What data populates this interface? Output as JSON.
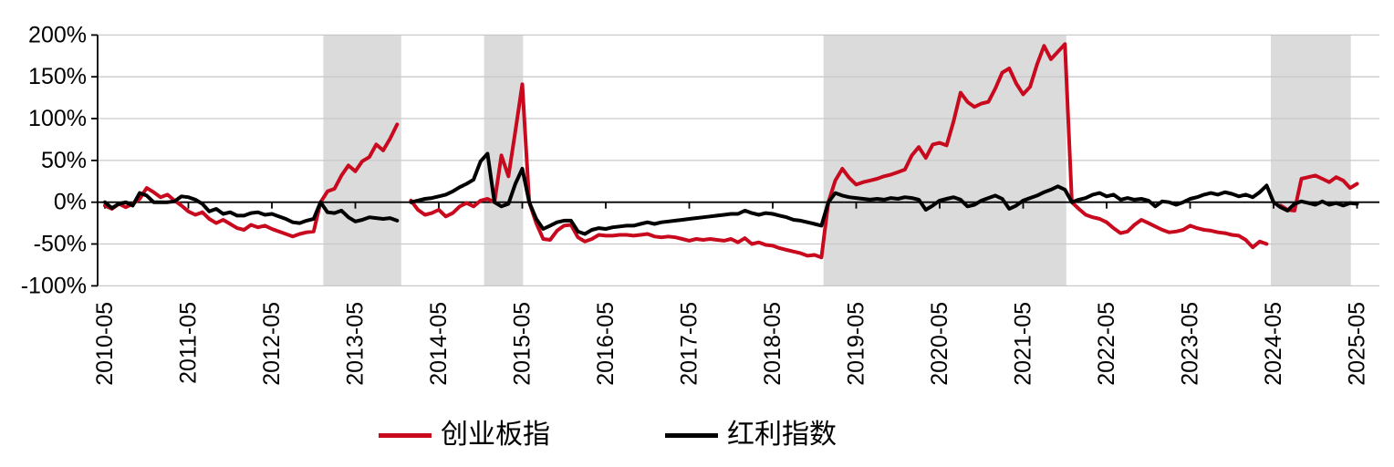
{
  "chart_data": {
    "type": "line",
    "title": "",
    "x_unit": "month",
    "x_start": "2010-05",
    "x_end": "2025-05",
    "n_points": 181,
    "x_tick_labels": [
      "2010-05",
      "2011-05",
      "2012-05",
      "2013-05",
      "2014-05",
      "2015-05",
      "2016-05",
      "2017-05",
      "2018-05",
      "2019-05",
      "2020-05",
      "2021-05",
      "2022-05",
      "2023-05",
      "2024-05",
      "2025-05"
    ],
    "x_tick_interval_months": 12,
    "y_ticks": [
      200,
      150,
      100,
      50,
      0,
      -50,
      -100
    ],
    "y_tick_labels": [
      "200%",
      "150%",
      "100%",
      "50%",
      "0%",
      "-50%",
      "-100%"
    ],
    "ylim": [
      -100,
      200
    ],
    "grid": "horizontal",
    "legend_position": "bottom",
    "axis_color": "#000000",
    "gridline_color": "#c9c9c9",
    "band_color": "#dbdbdb",
    "shaded_bands": [
      {
        "from": "2012-12",
        "to": "2013-11",
        "from_month_index": 31.4,
        "to_month_index": 42.6
      },
      {
        "from": "2014-12",
        "to": "2015-05",
        "from_month_index": 54.5,
        "to_month_index": 60.1
      },
      {
        "from": "2019-01",
        "to": "2021-11",
        "from_month_index": 103.3,
        "to_month_index": 138.2
      },
      {
        "from": "2024-05",
        "to": "2025-04",
        "from_month_index": 167.6,
        "to_month_index": 179.1
      }
    ],
    "series": [
      {
        "name": "创业板指",
        "color": "#c8091e",
        "values": [
          -4,
          -8,
          -2,
          -6,
          -2,
          4,
          17,
          12,
          6,
          9,
          2,
          -4,
          -11,
          -15,
          -12,
          -20,
          -25,
          -21,
          -26,
          -31,
          -33,
          -27,
          -30,
          -28,
          -32,
          -35,
          -38,
          -41,
          -38,
          -36,
          -35,
          0,
          13,
          16,
          32,
          44,
          37,
          49,
          54,
          69,
          62,
          76,
          93,
          null,
          2,
          -9,
          -15,
          -13,
          -9,
          -17,
          -13,
          -5,
          -1,
          -5,
          2,
          4,
          0,
          56,
          31,
          85,
          141,
          0,
          -25,
          -44,
          -45,
          -34,
          -28,
          -27,
          -42,
          -47,
          -44,
          -39,
          -40,
          -40,
          -39,
          -39,
          -40,
          -39,
          -38,
          -41,
          -42,
          -41,
          -42,
          -44,
          -46,
          -44,
          -45,
          -44,
          -45,
          -46,
          -44,
          -48,
          -43,
          -50,
          -48,
          -51,
          -52,
          -55,
          -57,
          -59,
          -61,
          -64,
          -63,
          -66,
          0,
          26,
          40,
          29,
          21,
          24,
          26,
          28,
          31,
          33,
          36,
          39,
          56,
          66,
          53,
          69,
          71,
          68,
          97,
          131,
          120,
          114,
          118,
          120,
          136,
          155,
          160,
          142,
          129,
          138,
          165,
          187,
          171,
          180,
          189,
          0,
          -8,
          -15,
          -18,
          -20,
          -24,
          -31,
          -37,
          -35,
          -27,
          -21,
          -25,
          -29,
          -33,
          -36,
          -35,
          -33,
          -28,
          -31,
          -33,
          -34,
          -36,
          -37,
          -39,
          -40,
          -45,
          -54,
          -47,
          -50,
          null,
          -4,
          -9,
          -10,
          28,
          30,
          32,
          28,
          24,
          30,
          26,
          17,
          22
        ]
      },
      {
        "name": "红利指数",
        "color": "#000000",
        "values": [
          0,
          -7,
          -2,
          0,
          -4,
          11,
          8,
          0,
          0,
          0,
          1,
          7,
          6,
          3,
          -2,
          -11,
          -8,
          -14,
          -12,
          -16,
          -16,
          -13,
          -12,
          -15,
          -14,
          -17,
          -20,
          -24,
          -25,
          -22,
          -20,
          0,
          -12,
          -13,
          -10,
          -18,
          -23,
          -21,
          -18,
          -19,
          -20,
          -19,
          -22,
          null,
          0,
          2,
          4,
          5,
          7,
          9,
          13,
          18,
          22,
          27,
          49,
          58,
          0,
          -5,
          -2,
          22,
          40,
          0,
          -20,
          -32,
          -28,
          -24,
          -22,
          -22,
          -35,
          -38,
          -33,
          -31,
          -32,
          -30,
          -29,
          -28,
          -28,
          -26,
          -24,
          -26,
          -24,
          -23,
          -22,
          -21,
          -20,
          -19,
          -18,
          -17,
          -16,
          -15,
          -14,
          -14,
          -10,
          -13,
          -15,
          -13,
          -14,
          -16,
          -18,
          -21,
          -22,
          -24,
          -26,
          -28,
          0,
          11,
          8,
          6,
          5,
          4,
          3,
          4,
          3,
          5,
          4,
          6,
          5,
          3,
          -9,
          -4,
          2,
          4,
          6,
          3,
          -5,
          -3,
          2,
          5,
          8,
          4,
          -8,
          -4,
          2,
          5,
          8,
          12,
          15,
          19,
          15,
          0,
          3,
          5,
          9,
          11,
          7,
          9,
          3,
          5,
          3,
          4,
          2,
          -5,
          1,
          0,
          -3,
          0,
          4,
          6,
          9,
          11,
          9,
          12,
          10,
          7,
          9,
          6,
          12,
          20,
          0,
          -6,
          -10,
          -2,
          1,
          -1,
          -3,
          1,
          -3,
          -1,
          -4,
          -1,
          -2
        ]
      }
    ]
  },
  "legend": {
    "items": [
      {
        "label": "创业板指"
      },
      {
        "label": "红利指数"
      }
    ]
  }
}
